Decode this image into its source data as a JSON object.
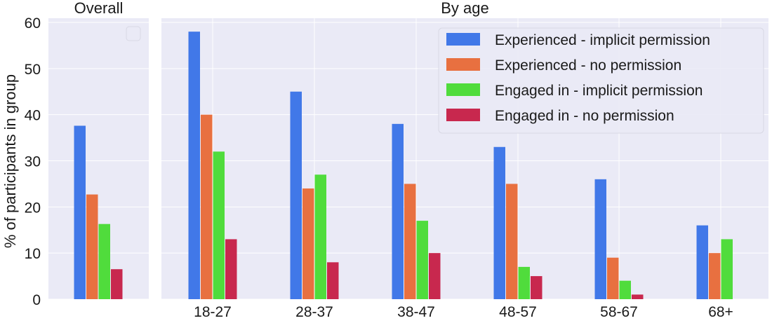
{
  "chart_data": [
    {
      "type": "bar",
      "title": "Overall",
      "ylabel": "% of participants in group",
      "ylim": [
        0,
        60
      ],
      "yticks": [
        0,
        10,
        20,
        30,
        40,
        50,
        60
      ],
      "grid": true,
      "categories": [
        ""
      ],
      "series": [
        {
          "name": "Experienced - implicit permission",
          "values": [
            37.6
          ]
        },
        {
          "name": "Experienced - no permission",
          "values": [
            22.7
          ]
        },
        {
          "name": "Engaged in - implicit permission",
          "values": [
            16.3
          ]
        },
        {
          "name": "Engaged in - no permission",
          "values": [
            6.5
          ]
        }
      ],
      "legend": "top-right (empty)"
    },
    {
      "type": "bar",
      "title": "By age",
      "ylim": [
        0,
        60
      ],
      "grid": true,
      "categories": [
        "18-27",
        "28-37",
        "38-47",
        "48-57",
        "58-67",
        "68+"
      ],
      "series": [
        {
          "name": "Experienced - implicit permission",
          "values": [
            58,
            45,
            38,
            33,
            26,
            16
          ]
        },
        {
          "name": "Experienced - no permission",
          "values": [
            40,
            24,
            25,
            25,
            9,
            10
          ]
        },
        {
          "name": "Engaged in - implicit permission",
          "values": [
            32,
            27,
            17,
            7,
            4,
            13
          ]
        },
        {
          "name": "Engaged in - no permission",
          "values": [
            13,
            8,
            10,
            5,
            1,
            0
          ]
        }
      ],
      "legend": "top-right"
    }
  ],
  "colors": [
    "#4178e8",
    "#e87040",
    "#50dc3c",
    "#c8284e"
  ],
  "panel_bg": "#eaeaf6"
}
